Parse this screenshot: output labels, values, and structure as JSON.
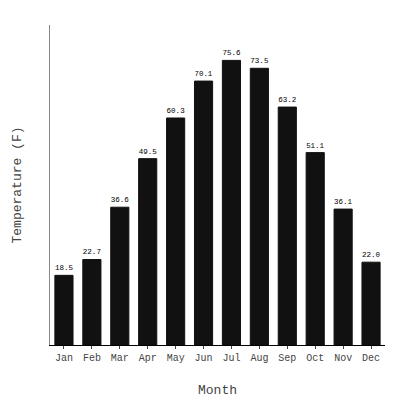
{
  "chart_data": {
    "type": "bar",
    "categories": [
      "Jan",
      "Feb",
      "Mar",
      "Apr",
      "May",
      "Jun",
      "Jul",
      "Aug",
      "Sep",
      "Oct",
      "Nov",
      "Dec"
    ],
    "values": [
      18.5,
      22.7,
      36.6,
      49.5,
      60.3,
      70.1,
      75.6,
      73.5,
      63.2,
      51.1,
      36.1,
      22.0
    ],
    "value_labels": [
      "18.5",
      "22.7",
      "36.6",
      "49.5",
      "60.3",
      "70.1",
      "75.6",
      "73.5",
      "63.2",
      "51.1",
      "36.1",
      "22.0"
    ],
    "color": "#111111",
    "x_label": "Month",
    "y_label": "Temperature (F)",
    "ylim": [
      0,
      85
    ],
    "grid": false,
    "data_labels": true,
    "tick_labels": "x"
  }
}
